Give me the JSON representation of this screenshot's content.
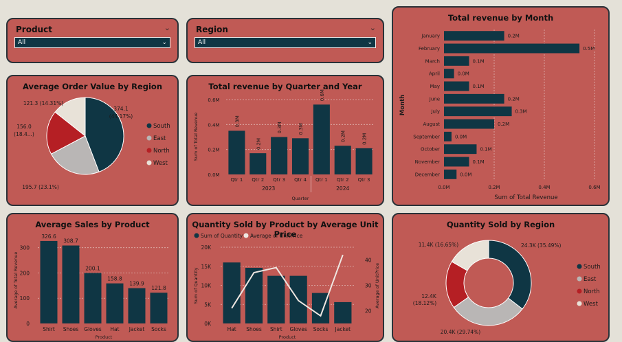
{
  "colors": {
    "background": "#e4e1d8",
    "card": "#c05a55",
    "dark": "#0f3644",
    "gray": "#b9b6b5",
    "red": "#b51f24",
    "light": "#e8e2d8",
    "line": "#efe7e2"
  },
  "slicers": {
    "product": {
      "label": "Product",
      "value": "All",
      "icon": "chevron-down-icon"
    },
    "region": {
      "label": "Region",
      "value": "All",
      "icon": "chevron-down-icon"
    }
  },
  "aov_region": {
    "title": "Average Order Value by Region",
    "legend": [
      {
        "name": "South",
        "color": "#0f3644"
      },
      {
        "name": "East",
        "color": "#b9b6b5"
      },
      {
        "name": "North",
        "color": "#b51f24"
      },
      {
        "name": "West",
        "color": "#e8e2d8"
      }
    ],
    "chart_data": {
      "type": "pie",
      "categories": [
        "South",
        "East",
        "North",
        "West"
      ],
      "values": [
        374.1,
        195.7,
        156.0,
        121.3
      ],
      "percents": [
        "44.17%",
        "23.1%",
        "18.4...",
        "14.31%"
      ],
      "labels": [
        "374.1",
        "(44.17%)",
        "195.7 (23.1%)",
        "156.0",
        "(18.4...)",
        "121.3 (14.31%)"
      ]
    }
  },
  "rev_quarter": {
    "title": "Total revenue by Quarter and Year",
    "chart_data": {
      "type": "bar",
      "categories": [
        "Qtr 1",
        "Qtr 2",
        "Qtr 3",
        "Qtr 4",
        "Qtr 1",
        "Qtr 2",
        "Qtr 3"
      ],
      "years": [
        {
          "label": "2023",
          "span": [
            0,
            3
          ]
        },
        {
          "label": "2024",
          "span": [
            4,
            6
          ]
        }
      ],
      "values": [
        0.35,
        0.17,
        0.3,
        0.29,
        0.56,
        0.23,
        0.21
      ],
      "data_labels": [
        "0.3M",
        "0.2M",
        "0.3M",
        "0.3M",
        "0.6M",
        "0.2M",
        "0.2M"
      ],
      "yticks": [
        "0.0M",
        "0.2M",
        "0.4M",
        "0.6M"
      ],
      "ylim": [
        0,
        0.6
      ],
      "xlabel": "Quarter",
      "ylabel": "Sum of Total Revenue"
    }
  },
  "rev_month": {
    "title": "Total revenue by Month",
    "chart_data": {
      "type": "bar",
      "orientation": "horizontal",
      "categories": [
        "January",
        "February",
        "March",
        "April",
        "May",
        "June",
        "July",
        "August",
        "September",
        "October",
        "November",
        "December"
      ],
      "values": [
        0.24,
        0.54,
        0.1,
        0.04,
        0.1,
        0.24,
        0.27,
        0.2,
        0.03,
        0.13,
        0.1,
        0.05
      ],
      "data_labels": [
        "0.2M",
        "0.5M",
        "0.1M",
        "0.0M",
        "0.1M",
        "0.2M",
        "0.3M",
        "0.2M",
        "0.0M",
        "0.1M",
        "0.1M",
        "0.0M"
      ],
      "xticks": [
        "0.0M",
        "0.2M",
        "0.4M",
        "0.6M"
      ],
      "xlim": [
        0,
        0.6
      ],
      "xlabel": "Sum of Total Revenue",
      "ylabel": "Month"
    }
  },
  "sales_product": {
    "title": "Average Sales by Product",
    "chart_data": {
      "type": "bar",
      "categories": [
        "Shirt",
        "Shoes",
        "Gloves",
        "Hat",
        "Jacket",
        "Socks"
      ],
      "values": [
        326.6,
        308.7,
        200.1,
        158.8,
        139.9,
        121.8
      ],
      "data_labels": [
        "326.6",
        "308.7",
        "200.1",
        "158.8",
        "139.9",
        "121.8"
      ],
      "yticks": [
        "0",
        "100",
        "200",
        "300"
      ],
      "ylim": [
        0,
        340
      ],
      "xlabel": "Product",
      "ylabel": "Average of Total Revenue"
    }
  },
  "qty_price": {
    "title": "Quantity Sold by Product by Average Unit Price",
    "legend": [
      {
        "name": "Sum of Quantity",
        "color": "#0f3644"
      },
      {
        "name": "Average of UnitPrice",
        "color": "#efe7e2"
      }
    ],
    "chart_data": {
      "type": "bar",
      "categories": [
        "Hat",
        "Shoes",
        "Shirt",
        "Gloves",
        "Socks",
        "Jacket"
      ],
      "series": [
        {
          "name": "Sum of Quantity",
          "type": "bar",
          "values": [
            16000,
            14600,
            12500,
            12500,
            8000,
            5600
          ]
        },
        {
          "name": "Average of UnitPrice",
          "type": "line",
          "values": [
            21,
            35,
            37,
            24,
            18,
            42
          ]
        }
      ],
      "yticks": [
        "0K",
        "5K",
        "10K",
        "15K",
        "20K"
      ],
      "ylim": [
        0,
        20000
      ],
      "y2ticks": [
        "20",
        "30",
        "40"
      ],
      "y2lim": [
        15,
        45
      ],
      "xlabel": "Product",
      "ylabel": "Sum of Quantity",
      "y2label": "Average of UnitPrice"
    }
  },
  "qty_region": {
    "title": "Quantity Sold by Region",
    "legend": [
      {
        "name": "South",
        "color": "#0f3644"
      },
      {
        "name": "East",
        "color": "#b9b6b5"
      },
      {
        "name": "North",
        "color": "#b51f24"
      },
      {
        "name": "West",
        "color": "#e8e2d8"
      }
    ],
    "chart_data": {
      "type": "pie",
      "donut": true,
      "categories": [
        "South",
        "East",
        "North",
        "West"
      ],
      "values": [
        24.3,
        20.4,
        12.4,
        11.4
      ],
      "percents": [
        "35.49%",
        "29.74%",
        "18.12%",
        "16.65%"
      ],
      "labels": [
        "24.3K (35.49%)",
        "20.4K (29.74%)",
        "12.4K",
        "(18.12%)",
        "11.4K (16.65%)"
      ]
    }
  }
}
